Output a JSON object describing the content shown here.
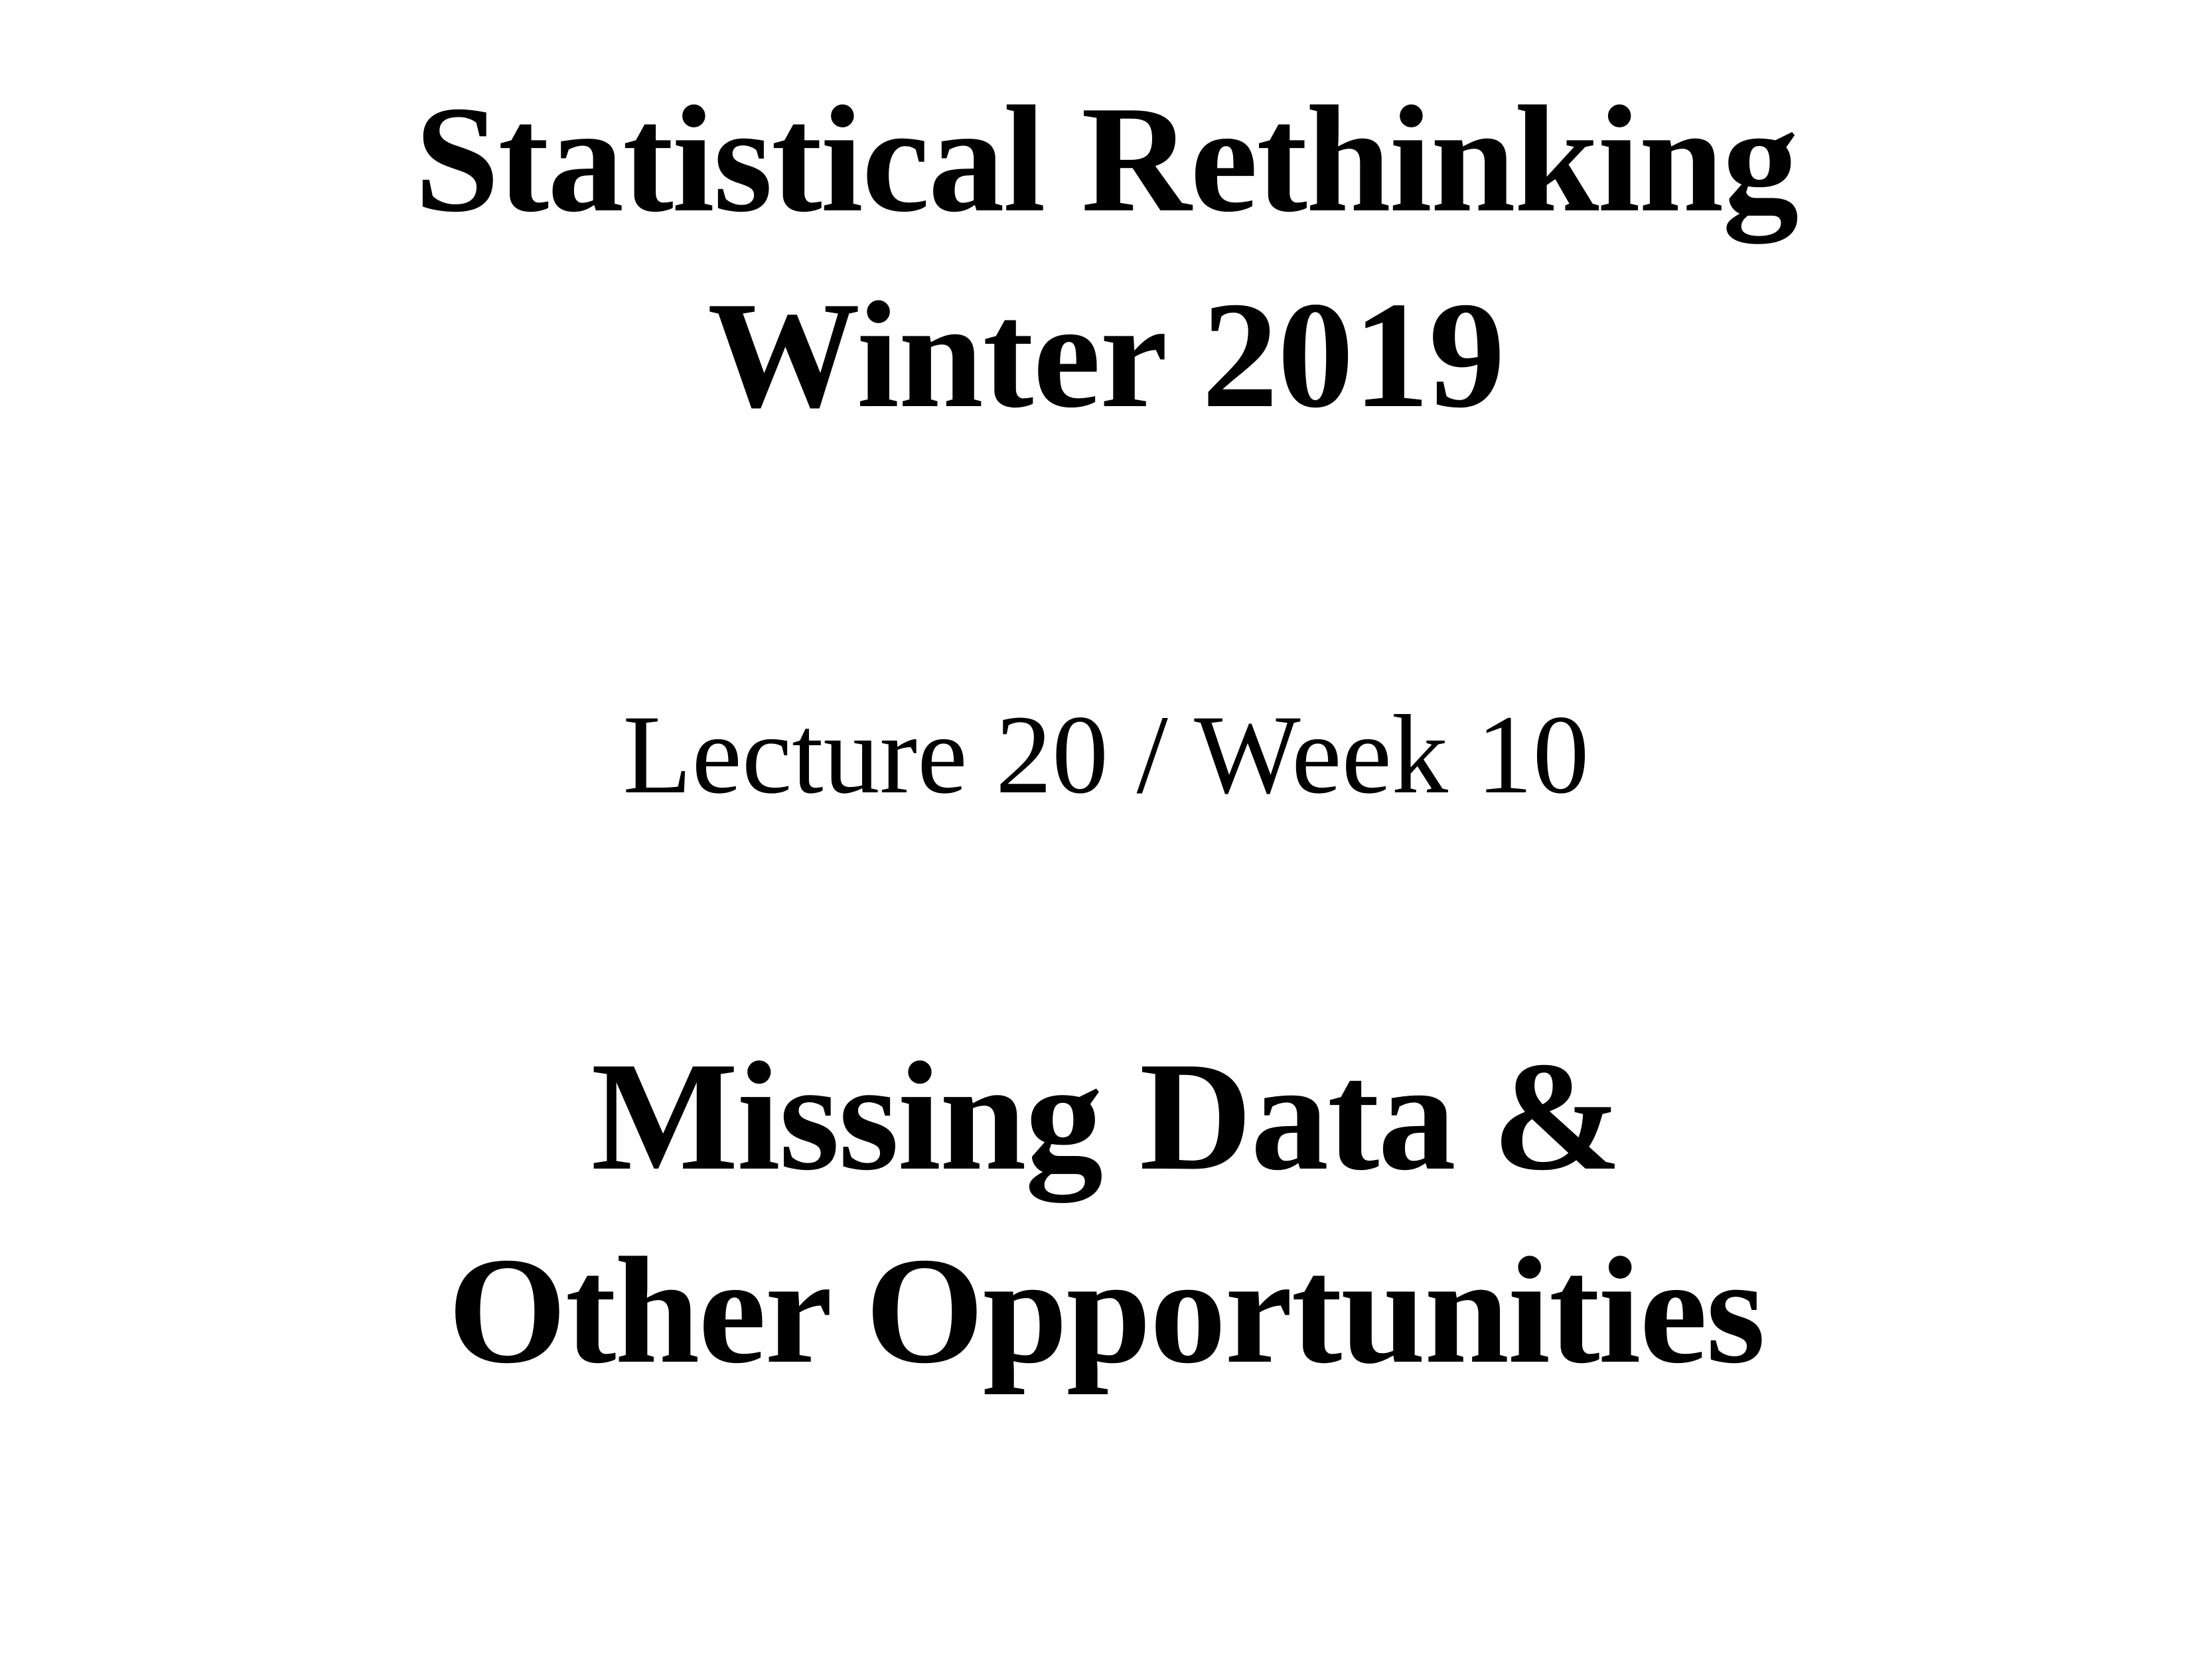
{
  "slide": {
    "course_title": "Statistical Rethinking",
    "course_term": "Winter 2019",
    "lecture_label": "Lecture 20 / Week 10",
    "lecture_title_line1": "Missing Data &",
    "lecture_title_line2": "Other Opportunities"
  }
}
